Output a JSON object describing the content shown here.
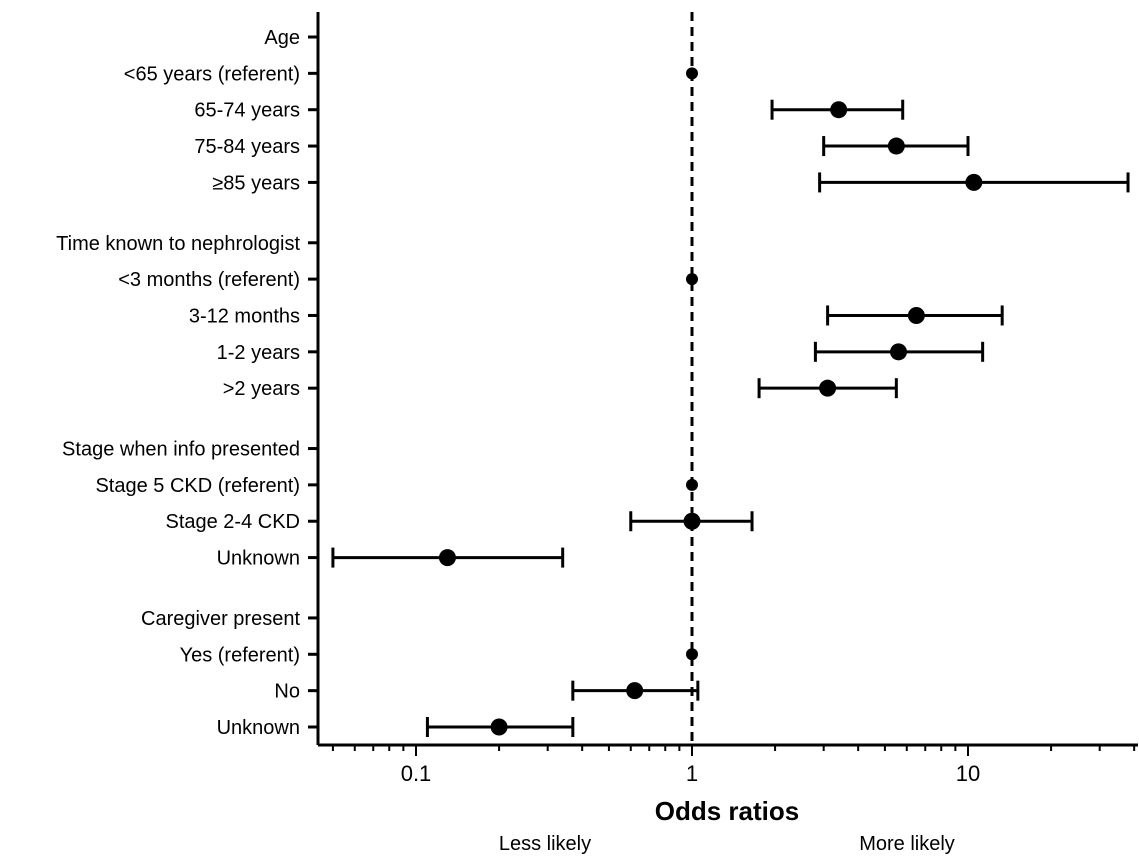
{
  "chart_data": {
    "type": "scatter",
    "title": "",
    "xlabel": "Odds ratios",
    "x_scale": "log",
    "xlim": [
      0.05,
      40
    ],
    "x_ticks": [
      0.1,
      1,
      10
    ],
    "x_tick_labels": [
      "0.1",
      "1",
      "10"
    ],
    "reference_line": 1,
    "side_labels": {
      "left": "Less likely",
      "right": "More likely"
    },
    "rows": [
      {
        "label": "Age",
        "or": null,
        "lo": null,
        "hi": null
      },
      {
        "label": "<65 years (referent)",
        "or": 1,
        "lo": null,
        "hi": null,
        "referent": true
      },
      {
        "label": "65-74 years",
        "or": 3.4,
        "lo": 1.95,
        "hi": 5.8
      },
      {
        "label": "75-84 years",
        "or": 5.5,
        "lo": 3.0,
        "hi": 10.0
      },
      {
        "label": "≥85 years",
        "or": 10.5,
        "lo": 2.9,
        "hi": 38
      },
      {
        "label": "Time known to nephrologist",
        "or": null,
        "lo": null,
        "hi": null
      },
      {
        "label": "<3 months (referent)",
        "or": 1,
        "lo": null,
        "hi": null,
        "referent": true
      },
      {
        "label": "3-12 months",
        "or": 6.5,
        "lo": 3.1,
        "hi": 13.3
      },
      {
        "label": "1-2 years",
        "or": 5.6,
        "lo": 2.8,
        "hi": 11.3
      },
      {
        "label": ">2 years",
        "or": 3.1,
        "lo": 1.75,
        "hi": 5.5
      },
      {
        "label": "Stage when info presented",
        "or": null,
        "lo": null,
        "hi": null
      },
      {
        "label": "Stage 5 CKD (referent)",
        "or": 1,
        "lo": null,
        "hi": null,
        "referent": true
      },
      {
        "label": "Stage 2-4 CKD",
        "or": 1.0,
        "lo": 0.6,
        "hi": 1.65
      },
      {
        "label": "Unknown",
        "or": 0.13,
        "lo": 0.05,
        "hi": 0.34
      },
      {
        "label": "Caregiver present",
        "or": null,
        "lo": null,
        "hi": null
      },
      {
        "label": "Yes (referent)",
        "or": 1,
        "lo": null,
        "hi": null,
        "referent": true
      },
      {
        "label": "No",
        "or": 0.62,
        "lo": 0.37,
        "hi": 1.05
      },
      {
        "label": "Unknown",
        "or": 0.2,
        "lo": 0.11,
        "hi": 0.37
      }
    ]
  }
}
